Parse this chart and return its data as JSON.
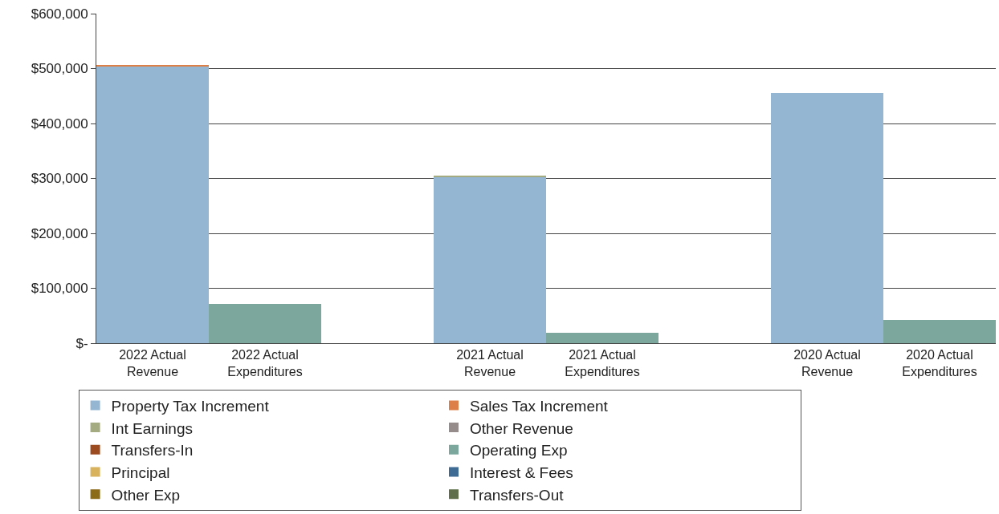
{
  "chart_data": {
    "type": "bar",
    "stacked": true,
    "categories": [
      "2022 Actual\nRevenue",
      "2022 Actual\nExpenditures",
      null,
      "2021 Actual\nRevenue",
      "2021 Actual\nExpenditures",
      null,
      "2020 Actual\nRevenue",
      "2020 Actual\nExpenditures"
    ],
    "series": [
      {
        "name": "Property Tax Increment",
        "color": "#94b6d2",
        "values": [
          505000,
          0,
          null,
          303000,
          0,
          null,
          456000,
          0
        ]
      },
      {
        "name": "Sales Tax Increment",
        "color": "#dd8047",
        "values": [
          2000,
          0,
          null,
          0,
          0,
          null,
          0,
          0
        ]
      },
      {
        "name": "Int Earnings",
        "color": "#a5ab81",
        "values": [
          0,
          0,
          null,
          2500,
          0,
          null,
          0,
          0
        ]
      },
      {
        "name": "Other Revenue",
        "color": "#968c8c",
        "values": [
          0,
          0,
          null,
          0,
          0,
          null,
          0,
          0
        ]
      },
      {
        "name": "Transfers-In",
        "color": "#9c4a1f",
        "values": [
          0,
          0,
          null,
          0,
          0,
          null,
          0,
          0
        ]
      },
      {
        "name": "Operating Exp",
        "color": "#7ba79d",
        "values": [
          0,
          71000,
          null,
          0,
          19000,
          null,
          0,
          42000
        ]
      },
      {
        "name": "Principal",
        "color": "#d8b25c",
        "values": [
          0,
          0,
          null,
          0,
          0,
          null,
          0,
          0
        ]
      },
      {
        "name": "Interest & Fees",
        "color": "#3e6b94",
        "values": [
          0,
          0,
          null,
          0,
          0,
          null,
          0,
          0
        ]
      },
      {
        "name": "Other Exp",
        "color": "#8c6b18",
        "values": [
          0,
          0,
          null,
          0,
          0,
          null,
          0,
          0
        ]
      },
      {
        "name": "Transfers-Out",
        "color": "#5f6f4a",
        "values": [
          0,
          0,
          null,
          0,
          0,
          null,
          0,
          0
        ]
      }
    ],
    "ylim": [
      0,
      600000
    ],
    "yticks": [
      {
        "value": 0,
        "label": "$-"
      },
      {
        "value": 100000,
        "label": "$100,000"
      },
      {
        "value": 200000,
        "label": "$200,000"
      },
      {
        "value": 300000,
        "label": "$300,000"
      },
      {
        "value": 400000,
        "label": "$400,000"
      },
      {
        "value": 500000,
        "label": "$500,000"
      },
      {
        "value": 600000,
        "label": "$600,000"
      }
    ],
    "grid": "y",
    "legend": "bottom"
  }
}
